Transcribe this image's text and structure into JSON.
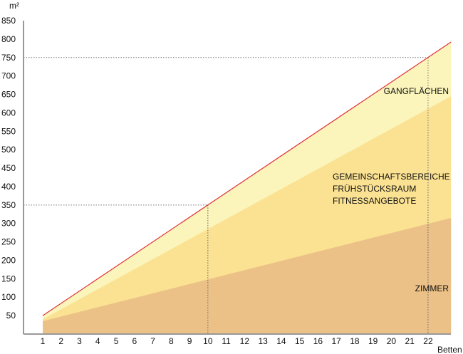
{
  "chart_data": {
    "type": "area",
    "title": "",
    "ylabel": "m²",
    "xlabel": "Betten",
    "ylim": [
      0,
      850
    ],
    "xlim": [
      1,
      23.25
    ],
    "yticks": [
      50,
      100,
      150,
      200,
      250,
      300,
      350,
      400,
      450,
      500,
      550,
      600,
      650,
      700,
      750,
      800,
      850
    ],
    "xticks": [
      1,
      2,
      3,
      4,
      5,
      6,
      7,
      8,
      9,
      10,
      11,
      12,
      13,
      14,
      15,
      16,
      17,
      18,
      19,
      20,
      21,
      22
    ],
    "x": [
      1,
      23.25
    ],
    "series": [
      {
        "name": "ZIMMER",
        "values": [
          35,
          315
        ],
        "color": "#ecc187"
      },
      {
        "name": "GEMEINSCHAFTSBEREICHE / FRÜHSTÜCKSRAUM / FITNESSANGEBOTE",
        "values": [
          40,
          645
        ],
        "color": "#fbe293"
      },
      {
        "name": "GANGFLÄCHEN",
        "values": [
          50,
          792
        ],
        "color": "#fbf5bb"
      }
    ],
    "total_line_color": "#e0303a",
    "reference_lines": [
      {
        "x": 10,
        "y": 350
      },
      {
        "x": 22,
        "y": 750
      }
    ],
    "labels": {
      "zimmer": "ZIMMER",
      "gemein": [
        "GEMEINSCHAFTSBEREICHE",
        "FRÜHSTÜCKSRAUM",
        "FITNESSANGEBOTE"
      ],
      "gang": "GANGFLÄCHEN"
    }
  }
}
